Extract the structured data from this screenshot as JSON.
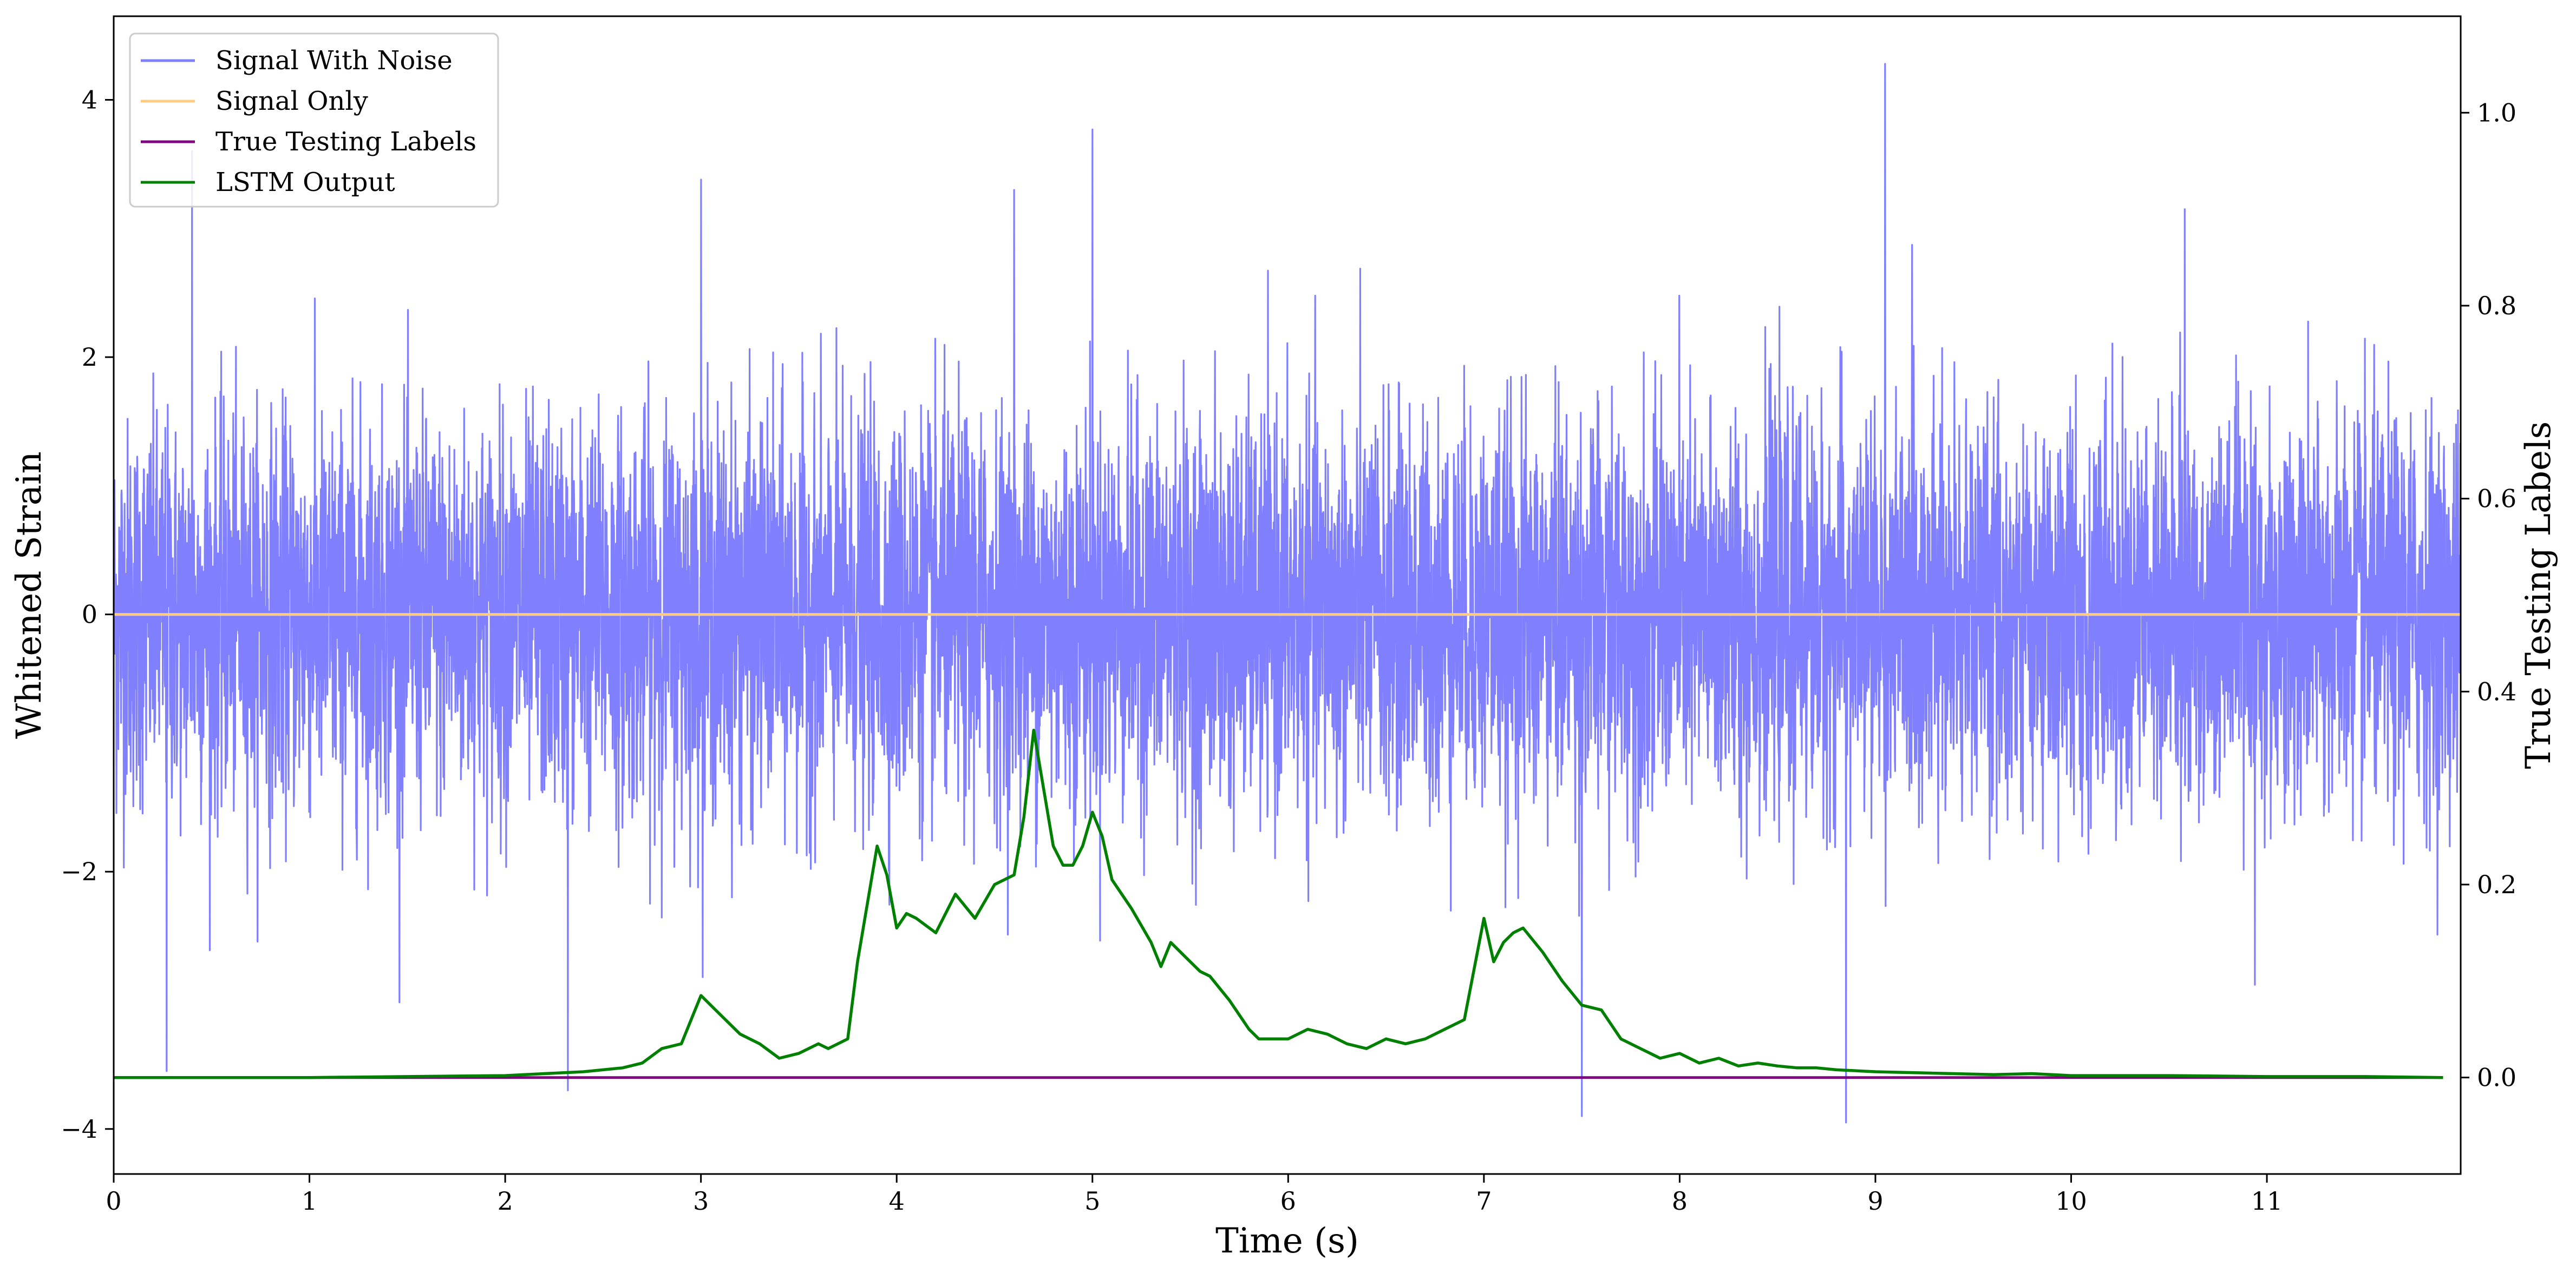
{
  "chart_data": {
    "type": "line",
    "xlabel": "Time (s)",
    "ylabel": "Whitened Strain",
    "y2label": "True Testing Labels",
    "xlim": [
      0,
      11.99
    ],
    "ylim": [
      -4.35,
      4.65
    ],
    "y2lim": [
      -0.1,
      1.1
    ],
    "x_ticks": [
      0,
      1,
      2,
      3,
      4,
      5,
      6,
      7,
      8,
      9,
      10,
      11
    ],
    "y_ticks": [
      -4,
      -2,
      0,
      2,
      4
    ],
    "y2_ticks": [
      0.0,
      0.2,
      0.4,
      0.6,
      0.8,
      1.0
    ],
    "grid": false,
    "legend_position": "top-left",
    "legend": [
      "Signal With Noise",
      "Signal Only",
      "True Testing Labels",
      "LSTM Output"
    ],
    "colors": {
      "signal_with_noise": "#8080ff",
      "signal_only": "#ffcc80",
      "true_testing_labels": "#800080",
      "lstm_output": "#008000"
    },
    "series": [
      {
        "name": "Signal With Noise",
        "axis": "left",
        "style": "noise",
        "x_range": [
          0,
          11.99
        ],
        "approx_std": 0.75,
        "typical_peak_range": [
          -2.8,
          2.8
        ],
        "notable_spikes": [
          {
            "x": 0.27,
            "y": -3.55
          },
          {
            "x": 0.4,
            "y": 3.6
          },
          {
            "x": 2.32,
            "y": -3.7
          },
          {
            "x": 3.0,
            "y": 3.38
          },
          {
            "x": 4.6,
            "y": 3.3
          },
          {
            "x": 5.0,
            "y": 3.77
          },
          {
            "x": 7.5,
            "y": -3.9
          },
          {
            "x": 8.85,
            "y": -3.95
          },
          {
            "x": 9.05,
            "y": 4.28
          },
          {
            "x": 10.58,
            "y": 3.15
          }
        ]
      },
      {
        "name": "Signal Only",
        "axis": "left",
        "x": [
          0,
          11.99
        ],
        "y": [
          0,
          0
        ]
      },
      {
        "name": "True Testing Labels",
        "axis": "right",
        "x": [
          0,
          11.9
        ],
        "y": [
          0,
          0
        ]
      },
      {
        "name": "LSTM Output",
        "axis": "right",
        "x": [
          0,
          1.0,
          1.5,
          2.0,
          2.2,
          2.4,
          2.6,
          2.7,
          2.8,
          2.9,
          3.0,
          3.1,
          3.2,
          3.3,
          3.4,
          3.5,
          3.6,
          3.65,
          3.75,
          3.8,
          3.9,
          3.95,
          4.0,
          4.05,
          4.1,
          4.2,
          4.3,
          4.4,
          4.5,
          4.6,
          4.65,
          4.7,
          4.75,
          4.8,
          4.85,
          4.9,
          4.95,
          5.0,
          5.05,
          5.1,
          5.2,
          5.3,
          5.35,
          5.4,
          5.5,
          5.55,
          5.6,
          5.7,
          5.8,
          5.85,
          5.9,
          6.0,
          6.1,
          6.2,
          6.3,
          6.4,
          6.5,
          6.6,
          6.7,
          6.8,
          6.9,
          7.0,
          7.05,
          7.1,
          7.15,
          7.2,
          7.3,
          7.4,
          7.5,
          7.6,
          7.7,
          7.8,
          7.9,
          8.0,
          8.1,
          8.2,
          8.3,
          8.4,
          8.5,
          8.6,
          8.7,
          8.8,
          9.0,
          9.2,
          9.4,
          9.6,
          9.8,
          10.0,
          10.5,
          11.0,
          11.5,
          11.9
        ],
        "y": [
          0,
          0,
          0.001,
          0.002,
          0.004,
          0.006,
          0.01,
          0.015,
          0.03,
          0.035,
          0.085,
          0.065,
          0.045,
          0.035,
          0.02,
          0.025,
          0.035,
          0.03,
          0.04,
          0.12,
          0.24,
          0.21,
          0.155,
          0.17,
          0.165,
          0.15,
          0.19,
          0.165,
          0.2,
          0.21,
          0.27,
          0.36,
          0.3,
          0.24,
          0.22,
          0.22,
          0.24,
          0.275,
          0.25,
          0.205,
          0.175,
          0.14,
          0.115,
          0.14,
          0.12,
          0.11,
          0.105,
          0.08,
          0.05,
          0.04,
          0.04,
          0.04,
          0.05,
          0.045,
          0.035,
          0.03,
          0.04,
          0.035,
          0.04,
          0.05,
          0.06,
          0.165,
          0.12,
          0.14,
          0.15,
          0.155,
          0.13,
          0.1,
          0.075,
          0.07,
          0.04,
          0.03,
          0.02,
          0.025,
          0.015,
          0.02,
          0.012,
          0.015,
          0.012,
          0.01,
          0.01,
          0.008,
          0.006,
          0.005,
          0.004,
          0.003,
          0.004,
          0.002,
          0.002,
          0.001,
          0.001,
          0
        ]
      }
    ]
  }
}
